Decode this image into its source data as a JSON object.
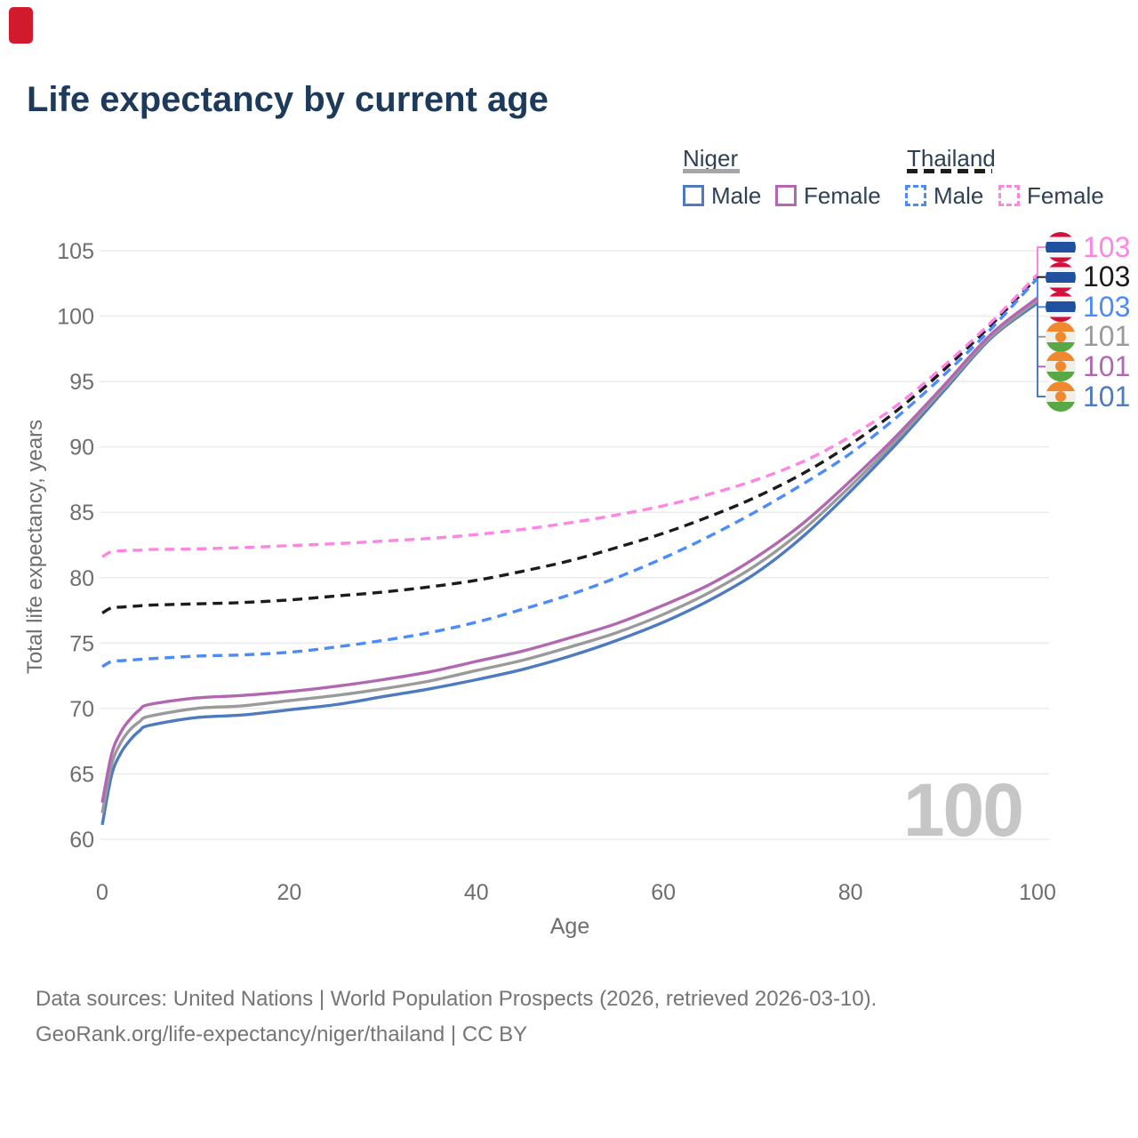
{
  "page": {
    "title": "Life expectancy by current age",
    "watermark_age": "100"
  },
  "legend": {
    "niger": {
      "title": "Niger",
      "male": "Male",
      "female": "Female"
    },
    "thailand": {
      "title": "Thailand",
      "male": "Male",
      "female": "Female"
    }
  },
  "colors": {
    "title_text": "#1e3a5a",
    "legend_text": "#2f4156",
    "tick_text": "#6e6e6e",
    "gridline": "#ebebeb",
    "watermark": "#c6c6c6",
    "footer_text": "#757575",
    "niger_male": "#4e7ac0",
    "niger_female": "#b168b1",
    "niger_both": "#9a9a9a",
    "thailand_male": "#4b8cfa",
    "thailand_female": "#ff85e2",
    "thailand_both": "#1c1c1c",
    "red_marker": "#d11a2d"
  },
  "chart_data": {
    "type": "line",
    "title": "Life expectancy by current age",
    "xlabel": "Age",
    "ylabel": "Total life expectancy, years",
    "xlim": [
      0,
      100
    ],
    "ylim": [
      60,
      105
    ],
    "xticks": [
      0,
      20,
      40,
      60,
      80,
      100
    ],
    "yticks": [
      60,
      65,
      70,
      75,
      80,
      85,
      90,
      95,
      100,
      105
    ],
    "grid": "horizontal",
    "legend_position": "top-right",
    "x": [
      0,
      1,
      2,
      3,
      4,
      5,
      10,
      15,
      20,
      25,
      30,
      35,
      40,
      45,
      50,
      55,
      60,
      65,
      70,
      75,
      80,
      85,
      90,
      95,
      100
    ],
    "series": [
      {
        "name": "Niger Male",
        "country": "Niger",
        "sex": "Male",
        "style": "solid",
        "color": "#4e7ac0",
        "values": [
          61.1,
          64.9,
          66.6,
          67.6,
          68.3,
          68.7,
          69.3,
          69.5,
          69.9,
          70.3,
          70.9,
          71.5,
          72.2,
          73.0,
          74.0,
          75.2,
          76.6,
          78.3,
          80.4,
          83.2,
          86.6,
          90.3,
          94.3,
          98.3,
          101.0
        ]
      },
      {
        "name": "Niger Both sexes",
        "country": "Niger",
        "sex": "Both",
        "style": "solid",
        "color": "#9a9a9a",
        "values": [
          62.0,
          65.7,
          67.4,
          68.4,
          69.0,
          69.4,
          70.0,
          70.2,
          70.6,
          71.0,
          71.5,
          72.1,
          72.9,
          73.7,
          74.7,
          75.8,
          77.2,
          78.9,
          81.0,
          83.7,
          87.0,
          90.6,
          94.5,
          98.4,
          101.2
        ]
      },
      {
        "name": "Niger Female",
        "country": "Niger",
        "sex": "Female",
        "style": "solid",
        "color": "#b168b1",
        "values": [
          62.8,
          66.5,
          68.2,
          69.2,
          69.9,
          70.3,
          70.8,
          71.0,
          71.3,
          71.7,
          72.2,
          72.8,
          73.6,
          74.4,
          75.4,
          76.5,
          77.9,
          79.5,
          81.6,
          84.2,
          87.4,
          90.9,
          94.7,
          98.6,
          101.4
        ]
      },
      {
        "name": "Thailand Both sexes",
        "country": "Thailand",
        "sex": "Both",
        "style": "dashed",
        "color": "#1c1c1c",
        "values": [
          77.3,
          77.7,
          77.75,
          77.8,
          77.85,
          77.9,
          78.0,
          78.1,
          78.3,
          78.6,
          78.9,
          79.3,
          79.8,
          80.5,
          81.3,
          82.3,
          83.4,
          84.7,
          86.2,
          88.0,
          90.2,
          92.8,
          95.9,
          99.3,
          103.0
        ]
      },
      {
        "name": "Thailand Male",
        "country": "Thailand",
        "sex": "Male",
        "style": "dashed",
        "color": "#4b8cfa",
        "values": [
          73.2,
          73.6,
          73.65,
          73.7,
          73.75,
          73.8,
          74.0,
          74.1,
          74.3,
          74.7,
          75.2,
          75.8,
          76.6,
          77.6,
          78.7,
          80.0,
          81.5,
          83.2,
          85.1,
          87.2,
          89.5,
          92.3,
          95.5,
          99.0,
          102.9
        ]
      },
      {
        "name": "Thailand Female",
        "country": "Thailand",
        "sex": "Female",
        "style": "dashed",
        "color": "#ff85e2",
        "values": [
          81.6,
          82.0,
          82.05,
          82.1,
          82.1,
          82.15,
          82.2,
          82.3,
          82.45,
          82.6,
          82.8,
          83.0,
          83.3,
          83.7,
          84.2,
          84.8,
          85.5,
          86.4,
          87.5,
          88.9,
          90.8,
          93.2,
          96.2,
          99.5,
          103.2
        ]
      }
    ],
    "end_labels": [
      {
        "value": "103",
        "series": "Thailand Female",
        "flag": "thailand",
        "color": "#ff85e2"
      },
      {
        "value": "103",
        "series": "Thailand Both sexes",
        "flag": "thailand",
        "color": "#1c1c1c"
      },
      {
        "value": "103",
        "series": "Thailand Male",
        "flag": "thailand",
        "color": "#4b8cfa"
      },
      {
        "value": "101",
        "series": "Niger Both sexes",
        "flag": "niger",
        "color": "#9a9a9a"
      },
      {
        "value": "101",
        "series": "Niger Female",
        "flag": "niger",
        "color": "#b168b1"
      },
      {
        "value": "101",
        "series": "Niger Male",
        "flag": "niger",
        "color": "#4e7ac0"
      }
    ]
  },
  "footer": {
    "line1": "Data sources: United Nations | World Population Prospects (2026, retrieved 2026-03-10).",
    "line2": "GeoRank.org/life-expectancy/niger/thailand | CC BY"
  }
}
